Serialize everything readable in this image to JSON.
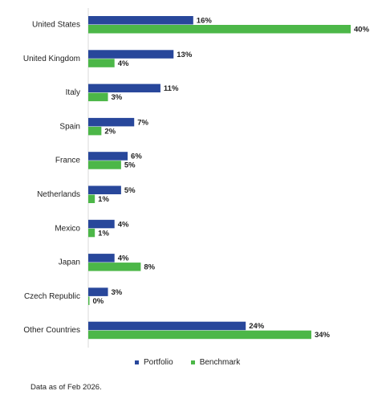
{
  "chart_data": {
    "type": "bar",
    "orientation": "horizontal",
    "categories": [
      "United States",
      "United Kingdom",
      "Italy",
      "Spain",
      "France",
      "Netherlands",
      "Mexico",
      "Japan",
      "Czech Republic",
      "Other Countries"
    ],
    "series": [
      {
        "name": "Portfolio",
        "color": "#28479b",
        "values": [
          16,
          13,
          11,
          7,
          6,
          5,
          4,
          4,
          3,
          24
        ],
        "labels": [
          "16%",
          "13%",
          "11%",
          "7%",
          "6%",
          "5%",
          "4%",
          "4%",
          "3%",
          "24%"
        ]
      },
      {
        "name": "Benchmark",
        "color": "#4cb748",
        "values": [
          40,
          4,
          3,
          2,
          5,
          1,
          1,
          8,
          0,
          34
        ],
        "labels": [
          "40%",
          "4%",
          "3%",
          "2%",
          "5%",
          "1%",
          "1%",
          "8%",
          "0%",
          "34%"
        ]
      }
    ],
    "xlim": [
      0,
      40
    ],
    "grid": false,
    "legend_position": "bottom"
  },
  "legend": {
    "portfolio": "Portfolio",
    "benchmark": "Benchmark"
  },
  "footnote": "Data as of Feb 2026."
}
